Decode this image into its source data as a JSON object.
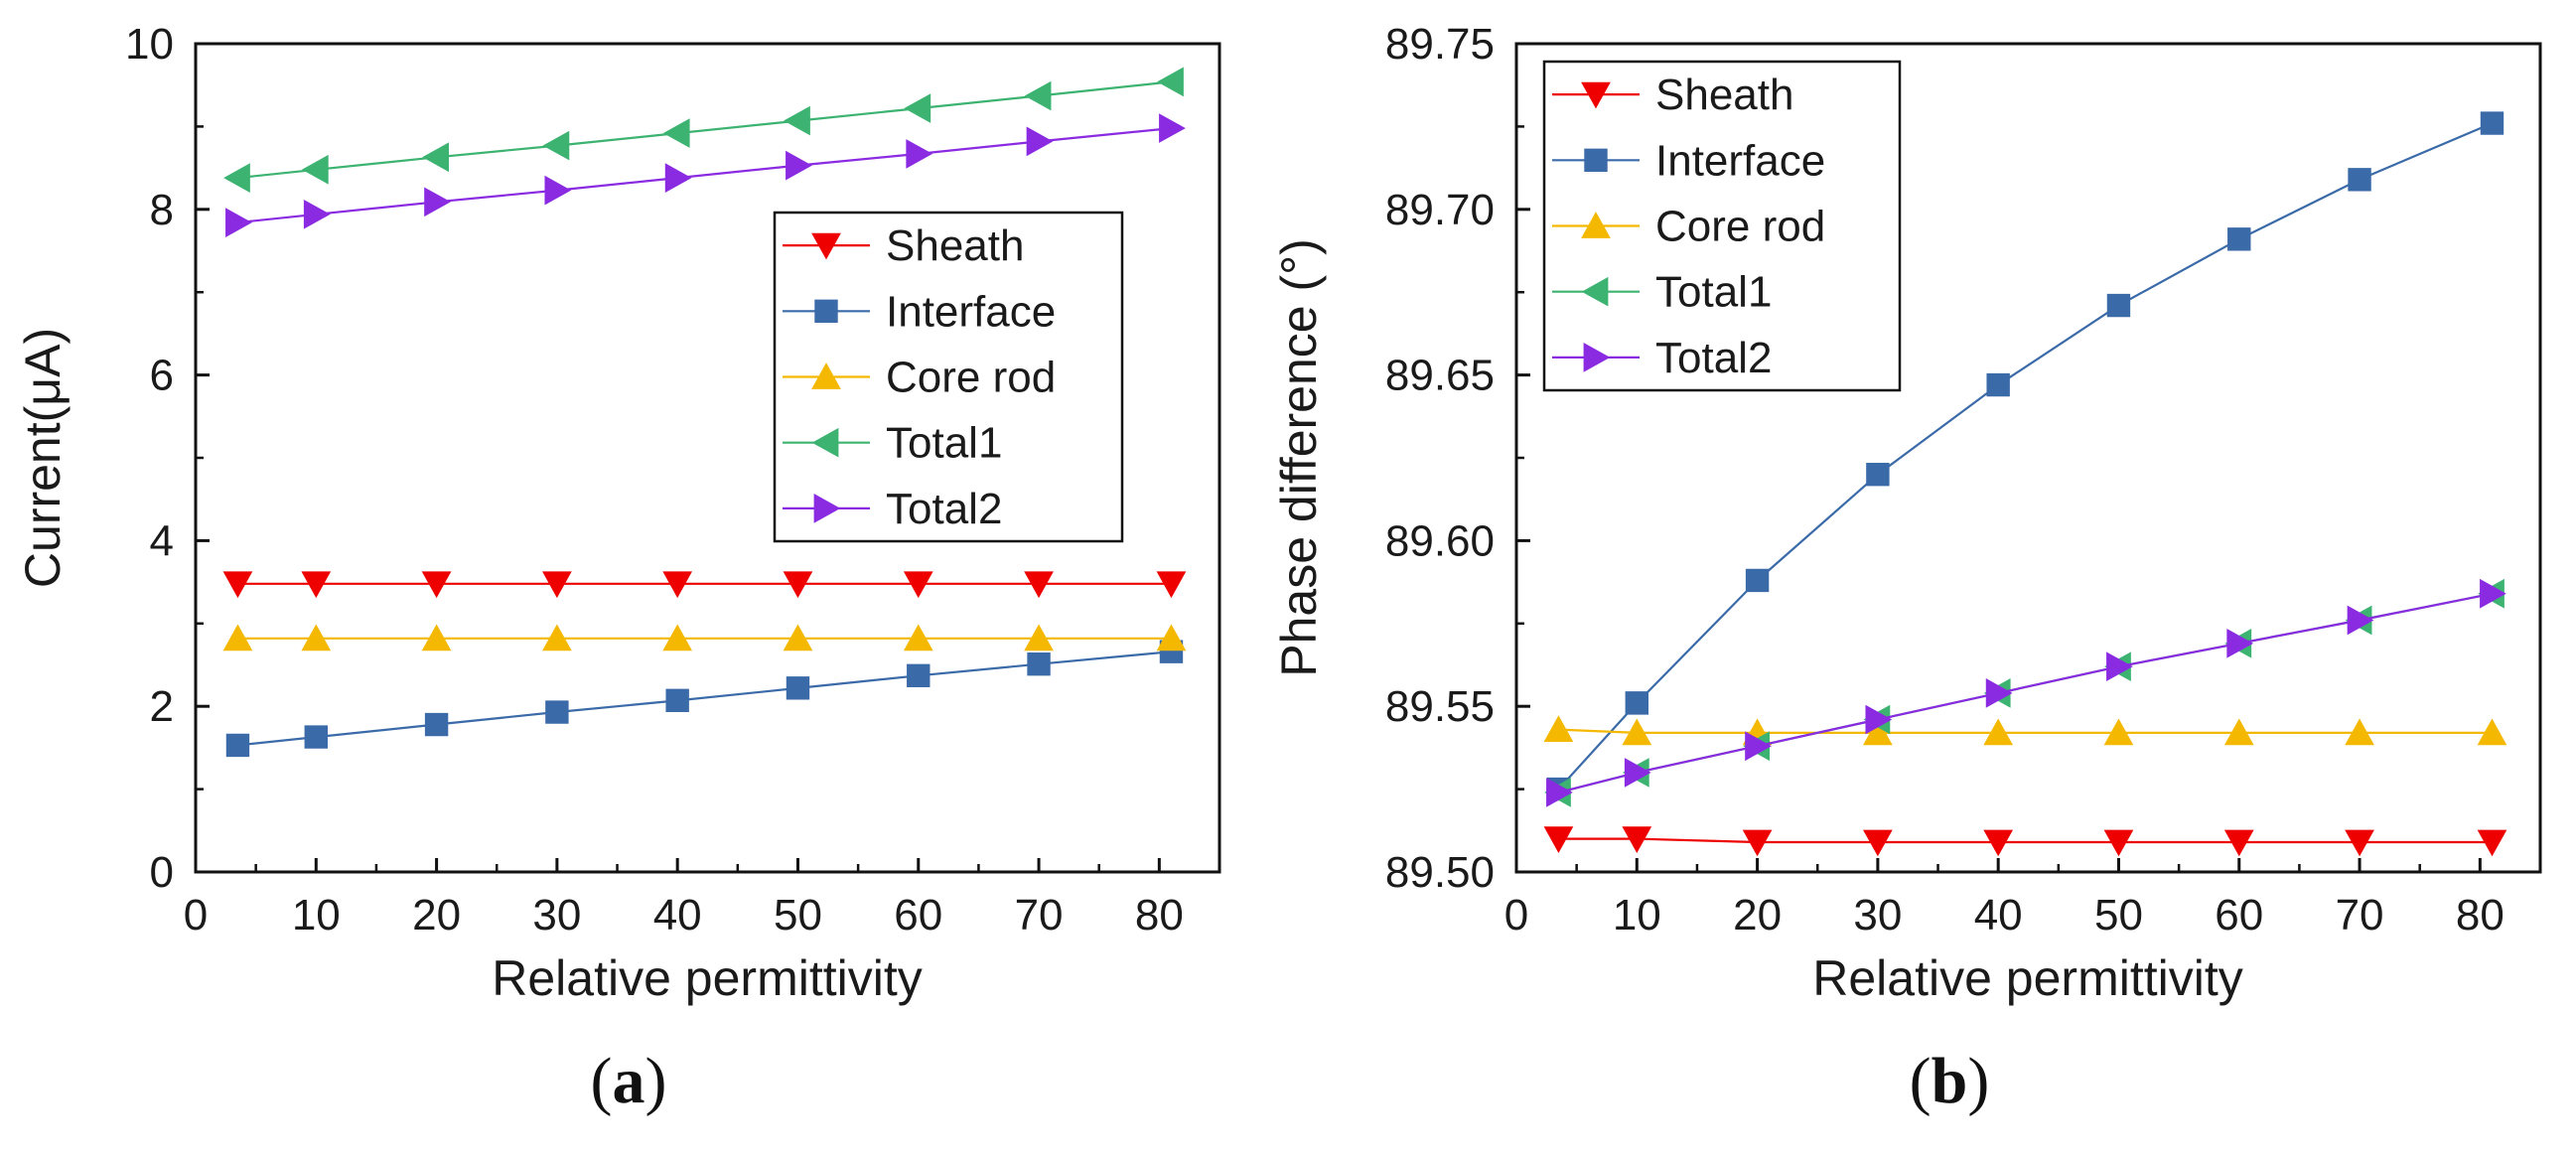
{
  "chart_data": [
    {
      "type": "line",
      "panel_label": "a",
      "xlabel": "Relative permittivity",
      "ylabel": "Current(μA)",
      "xlim": [
        0,
        85
      ],
      "ylim": [
        0,
        10
      ],
      "xticks": [
        0,
        10,
        20,
        30,
        40,
        50,
        60,
        70,
        80
      ],
      "yticks": [
        0,
        2,
        4,
        6,
        8,
        10
      ],
      "legend_position": "center-right",
      "x": [
        3.5,
        10,
        20,
        30,
        40,
        50,
        60,
        70,
        81
      ],
      "series": [
        {
          "name": "Sheath",
          "color": "#ee0000",
          "marker": "triangle-down",
          "values": [
            3.48,
            3.48,
            3.48,
            3.48,
            3.48,
            3.48,
            3.48,
            3.48,
            3.48
          ]
        },
        {
          "name": "Interface",
          "color": "#3a6aa8",
          "marker": "square",
          "values": [
            1.53,
            1.63,
            1.78,
            1.93,
            2.07,
            2.22,
            2.37,
            2.51,
            2.66
          ]
        },
        {
          "name": "Core rod",
          "color": "#f5b800",
          "marker": "triangle-up",
          "values": [
            2.82,
            2.82,
            2.82,
            2.82,
            2.82,
            2.82,
            2.82,
            2.82,
            2.82
          ]
        },
        {
          "name": "Total1",
          "color": "#3cb371",
          "marker": "triangle-left",
          "values": [
            8.38,
            8.48,
            8.63,
            8.77,
            8.92,
            9.07,
            9.22,
            9.37,
            9.54
          ]
        },
        {
          "name": "Total2",
          "color": "#8a2be2",
          "marker": "triangle-right",
          "values": [
            7.84,
            7.94,
            8.09,
            8.23,
            8.38,
            8.53,
            8.67,
            8.82,
            8.98
          ]
        }
      ]
    },
    {
      "type": "line",
      "panel_label": "b",
      "xlabel": "Relative permittivity",
      "ylabel": "Phase difference (°)",
      "xlim": [
        0,
        85
      ],
      "ylim": [
        89.5,
        89.75
      ],
      "xticks": [
        0,
        10,
        20,
        30,
        40,
        50,
        60,
        70,
        80
      ],
      "yticks": [
        89.5,
        89.55,
        89.6,
        89.65,
        89.7,
        89.75
      ],
      "ytick_labels": [
        "89.50",
        "89.55",
        "89.60",
        "89.65",
        "89.70",
        "89.75"
      ],
      "legend_position": "top-left",
      "x": [
        3.5,
        10,
        20,
        30,
        40,
        50,
        60,
        70,
        81
      ],
      "series": [
        {
          "name": "Sheath",
          "color": "#ee0000",
          "marker": "triangle-down",
          "values": [
            89.51,
            89.51,
            89.509,
            89.509,
            89.509,
            89.509,
            89.509,
            89.509,
            89.509
          ]
        },
        {
          "name": "Interface",
          "color": "#3a6aa8",
          "marker": "square",
          "values": [
            89.525,
            89.551,
            89.588,
            89.62,
            89.647,
            89.671,
            89.691,
            89.709,
            89.726
          ]
        },
        {
          "name": "Core rod",
          "color": "#f5b800",
          "marker": "triangle-up",
          "values": [
            89.543,
            89.542,
            89.542,
            89.542,
            89.542,
            89.542,
            89.542,
            89.542,
            89.542
          ]
        },
        {
          "name": "Total1",
          "color": "#3cb371",
          "marker": "triangle-left",
          "values": [
            89.524,
            89.53,
            89.538,
            89.546,
            89.554,
            89.562,
            89.569,
            89.576,
            89.584
          ]
        },
        {
          "name": "Total2",
          "color": "#8a2be2",
          "marker": "triangle-right",
          "values": [
            89.524,
            89.53,
            89.538,
            89.546,
            89.554,
            89.562,
            89.569,
            89.576,
            89.584
          ]
        }
      ]
    }
  ]
}
